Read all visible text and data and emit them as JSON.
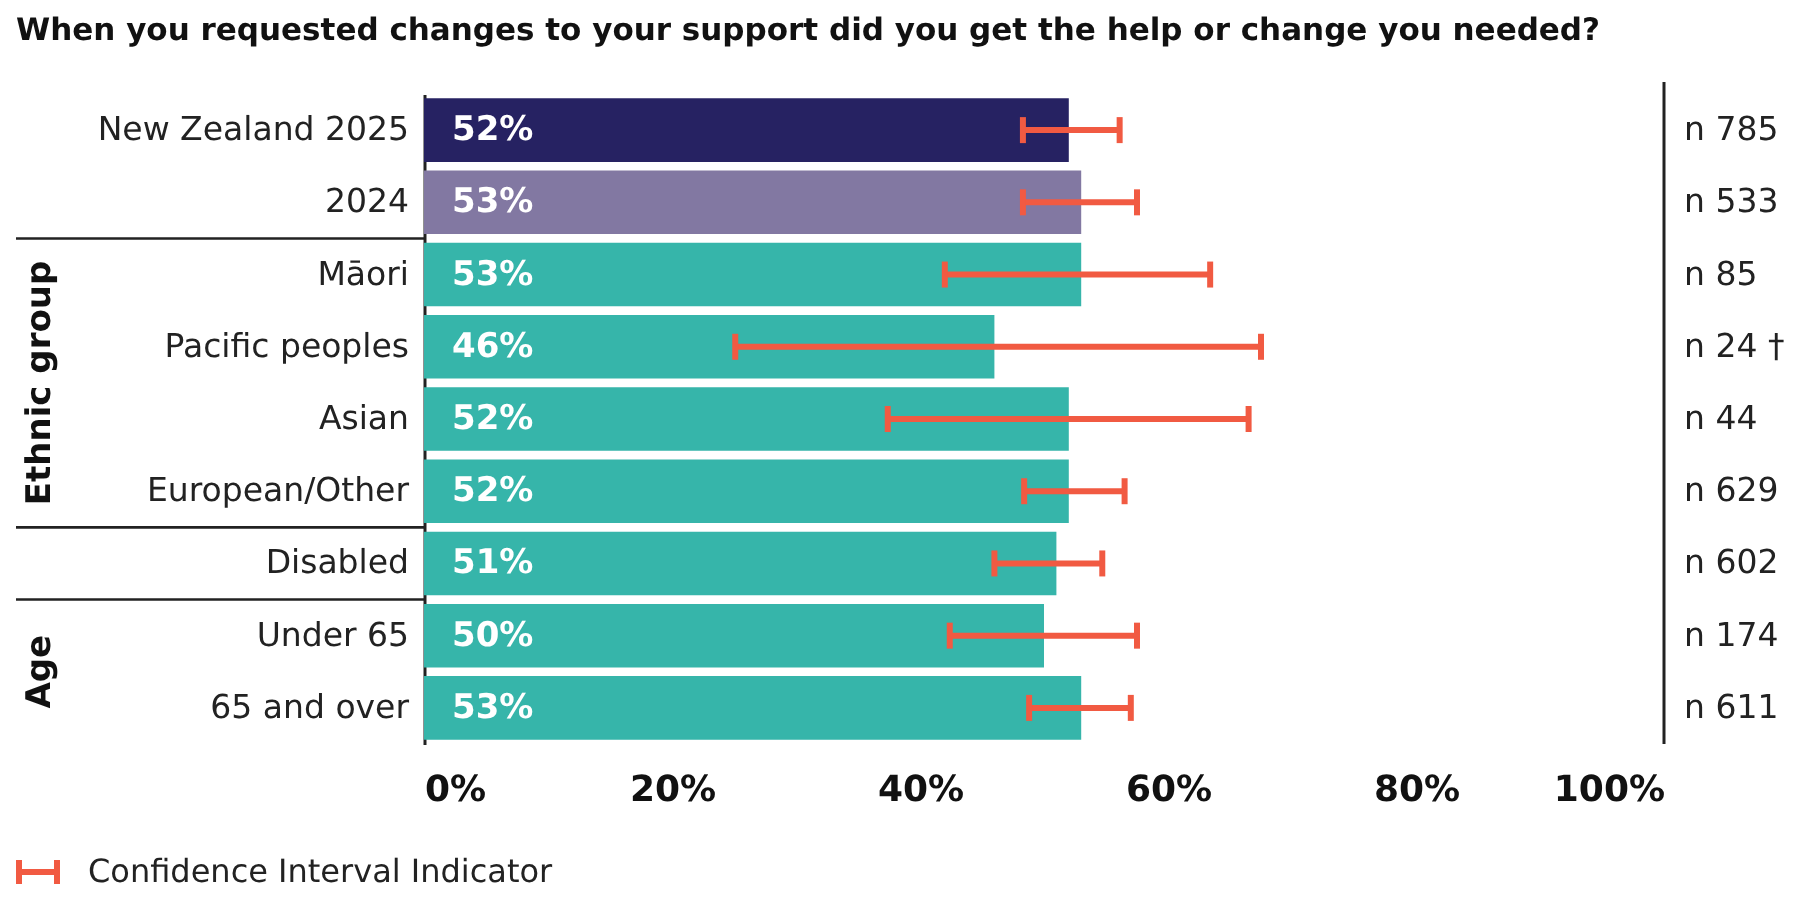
{
  "chart_data": {
    "type": "bar",
    "orientation": "horizontal",
    "title": "When you requested changes to your support did you get the help or change you needed?",
    "categories": [
      "New Zealand 2025",
      "2024",
      "Māori",
      "Pacific peoples",
      "Asian",
      "European/Other",
      "Disabled",
      "Under 65",
      "65 and over"
    ],
    "values": [
      52,
      53,
      53,
      46,
      52,
      52,
      51,
      50,
      53
    ],
    "value_labels": [
      "52%",
      "53%",
      "53%",
      "46%",
      "52%",
      "52%",
      "51%",
      "50%",
      "53%"
    ],
    "colors": [
      "#262262",
      "#8278a2",
      "#36b5aa",
      "#36b5aa",
      "#36b5aa",
      "#36b5aa",
      "#36b5aa",
      "#36b5aa",
      "#36b5aa"
    ],
    "errors": [
      [
        48.3,
        56.1
      ],
      [
        48.3,
        57.5
      ],
      [
        42.0,
        63.4
      ],
      [
        25.1,
        67.5
      ],
      [
        37.4,
        66.5
      ],
      [
        48.4,
        56.5
      ],
      [
        46.0,
        54.7
      ],
      [
        42.4,
        57.5
      ],
      [
        48.8,
        57.0
      ]
    ],
    "xlim": [
      0,
      100
    ],
    "xticks": [
      {
        "value": 0,
        "label": "0%"
      },
      {
        "value": 20,
        "label": "20%"
      },
      {
        "value": 40,
        "label": "40%"
      },
      {
        "value": 60,
        "label": "60%"
      },
      {
        "value": 80,
        "label": "80%"
      },
      {
        "value": 100,
        "label": "100%"
      }
    ],
    "grid": false,
    "annotations": [
      "n 785",
      "n 533",
      "n 85",
      "n 24 †",
      "n 44",
      "n 629",
      "n 602",
      "n 174",
      "n 611",
      "Ethnic group",
      "Age",
      "Confidence Interval Indicator"
    ]
  }
}
